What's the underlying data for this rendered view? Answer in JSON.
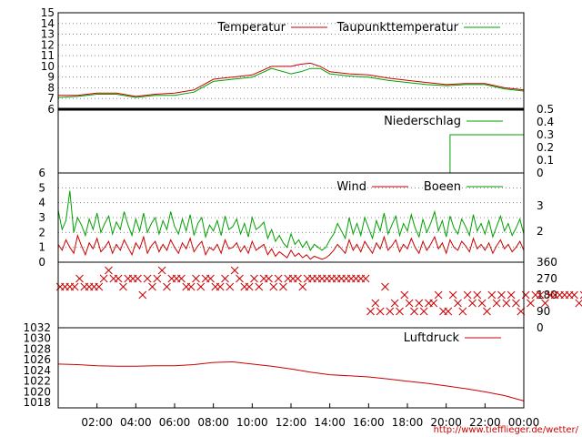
{
  "source_url": "http://www.tiefflieger.de/wetter/",
  "colors": {
    "red": "#cc0000",
    "green": "#00a000",
    "grid": "#888888",
    "frame": "#000000"
  },
  "x_axis": {
    "range_hours": [
      0,
      24
    ],
    "ticks": [
      "02:00",
      "04:00",
      "06:00",
      "08:00",
      "10:00",
      "12:00",
      "14:00",
      "16:00",
      "18:00",
      "20:00",
      "22:00",
      "00:00"
    ]
  },
  "chart_data": [
    {
      "type": "line",
      "panel": "temperature",
      "ylim": [
        6,
        15
      ],
      "yticks": [
        "6",
        "7",
        "8",
        "9",
        "10",
        "11",
        "12",
        "13",
        "14",
        "15"
      ],
      "grid": true,
      "legend_placement": "top-right",
      "x_hours": [
        0,
        1,
        2,
        3,
        4,
        5,
        6,
        7,
        8,
        9,
        10,
        11,
        12,
        12.5,
        13,
        13.5,
        14,
        15,
        16,
        17,
        18,
        19,
        20,
        21,
        22,
        23,
        24
      ],
      "series": [
        {
          "name": "Temperatur",
          "color": "#cc0000",
          "values": [
            7.3,
            7.3,
            7.5,
            7.5,
            7.2,
            7.4,
            7.5,
            7.8,
            8.8,
            9.0,
            9.2,
            10.0,
            10.0,
            10.2,
            10.3,
            10.0,
            9.5,
            9.3,
            9.2,
            8.9,
            8.7,
            8.5,
            8.3,
            8.4,
            8.4,
            8.0,
            7.8
          ]
        },
        {
          "name": "Taupunkttemperatur",
          "color": "#00a000",
          "values": [
            7.1,
            7.2,
            7.4,
            7.4,
            7.1,
            7.3,
            7.3,
            7.6,
            8.6,
            8.8,
            9.0,
            9.8,
            9.3,
            9.5,
            9.8,
            9.8,
            9.3,
            9.1,
            9.0,
            8.7,
            8.5,
            8.3,
            8.2,
            8.3,
            8.3,
            7.9,
            7.7
          ]
        }
      ]
    },
    {
      "type": "line",
      "panel": "precipitation",
      "ylim": [
        0,
        0.5
      ],
      "yticks": [
        "0",
        "0.1",
        "0.2",
        "0.3",
        "0.4",
        "0.5"
      ],
      "grid": false,
      "series": [
        {
          "name": "Niederschlag",
          "color": "#00a000",
          "x_hours": [
            0,
            20.2,
            20.2,
            24
          ],
          "values": [
            0,
            0,
            0.3,
            0.3
          ]
        }
      ]
    },
    {
      "type": "line",
      "panel": "wind",
      "ylim": [
        0,
        6
      ],
      "yticks": [
        "0",
        "1",
        "2",
        "3",
        "4",
        "5",
        "6"
      ],
      "right_ticks": [
        "2",
        "3"
      ],
      "grid": true,
      "x_step_hours": 0.2,
      "series": [
        {
          "name": "Wind",
          "color": "#cc0000",
          "values": [
            1.2,
            0.8,
            1.5,
            1.0,
            0.6,
            1.8,
            1.1,
            0.5,
            1.3,
            0.9,
            1.6,
            0.7,
            1.0,
            1.4,
            0.6,
            1.2,
            0.8,
            1.5,
            1.0,
            0.5,
            1.3,
            0.9,
            1.7,
            0.6,
            1.1,
            1.4,
            0.7,
            1.2,
            0.8,
            1.5,
            1.0,
            0.6,
            1.3,
            0.9,
            1.6,
            0.7,
            1.1,
            1.4,
            0.5,
            1.0,
            0.8,
            1.2,
            0.6,
            1.5,
            0.9,
            1.0,
            1.3,
            0.7,
            1.1,
            0.6,
            1.4,
            0.8,
            1.0,
            1.2,
            0.5,
            0.9,
            0.4,
            0.7,
            0.5,
            0.3,
            0.8,
            0.4,
            0.6,
            0.3,
            0.5,
            0.2,
            0.4,
            0.3,
            0.2,
            0.3,
            0.5,
            0.8,
            1.2,
            0.9,
            0.6,
            1.5,
            0.8,
            1.2,
            0.7,
            1.4,
            1.0,
            0.6,
            1.3,
            0.9,
            1.7,
            0.8,
            1.1,
            1.5,
            0.7,
            1.2,
            0.9,
            1.6,
            1.0,
            0.6,
            1.4,
            0.8,
            1.2,
            1.7,
            0.9,
            1.3,
            0.6,
            1.5,
            1.0,
            0.8,
            1.4,
            1.1,
            0.7,
            1.6,
            0.9,
            1.2,
            0.8,
            1.3,
            0.6,
            1.1,
            1.5,
            0.9,
            1.2,
            0.7,
            1.0,
            1.4,
            0.8
          ]
        },
        {
          "name": "Boeen",
          "color": "#00a000",
          "values": [
            3.5,
            2.2,
            2.8,
            4.8,
            2.0,
            3.0,
            2.5,
            1.8,
            2.9,
            2.2,
            3.3,
            2.0,
            2.6,
            3.1,
            1.9,
            2.7,
            2.2,
            3.4,
            2.5,
            1.8,
            2.9,
            2.1,
            3.3,
            2.0,
            2.6,
            3.0,
            1.9,
            2.8,
            2.2,
            3.4,
            2.4,
            1.9,
            2.9,
            2.1,
            3.2,
            1.8,
            2.6,
            3.0,
            1.7,
            2.5,
            2.1,
            2.8,
            1.8,
            3.1,
            2.2,
            2.4,
            2.9,
            1.9,
            2.6,
            1.7,
            3.0,
            2.2,
            2.4,
            2.7,
            1.6,
            2.2,
            1.4,
            1.8,
            1.3,
            1.0,
            1.9,
            1.2,
            1.5,
            1.0,
            1.4,
            0.8,
            1.2,
            1.0,
            0.8,
            1.0,
            1.5,
            1.9,
            2.6,
            2.1,
            1.6,
            3.0,
            1.9,
            2.6,
            1.8,
            3.0,
            2.3,
            1.6,
            2.8,
            2.1,
            3.3,
            1.9,
            2.5,
            3.1,
            1.8,
            2.6,
            2.1,
            3.2,
            2.3,
            1.7,
            2.9,
            2.0,
            2.6,
            3.4,
            2.1,
            2.8,
            1.7,
            3.1,
            2.3,
            1.9,
            2.9,
            2.4,
            1.8,
            3.2,
            2.1,
            2.6,
            1.9,
            2.8,
            1.7,
            2.4,
            3.1,
            2.1,
            2.6,
            1.8,
            2.3,
            2.9,
            1.9
          ]
        }
      ]
    },
    {
      "type": "scatter",
      "panel": "wind-direction",
      "ylim": [
        0,
        360
      ],
      "yticks": [
        "0",
        "90",
        "180",
        "270",
        "360"
      ],
      "grid": false,
      "marker": "x",
      "color": "#cc0000",
      "x_step_hours": 0.25,
      "values": [
        225,
        225,
        225,
        225,
        270,
        225,
        225,
        225,
        225,
        270,
        315,
        270,
        270,
        225,
        270,
        270,
        270,
        180,
        270,
        225,
        270,
        315,
        225,
        270,
        270,
        270,
        225,
        225,
        270,
        225,
        270,
        270,
        225,
        225,
        270,
        225,
        315,
        270,
        225,
        225,
        270,
        225,
        270,
        270,
        225,
        270,
        225,
        270,
        270,
        270,
        225,
        270,
        270,
        270,
        270,
        270,
        270,
        270,
        270,
        270,
        270,
        270,
        270,
        270,
        90,
        135,
        90,
        225,
        90,
        135,
        90,
        180,
        135,
        90,
        135,
        90,
        135,
        135,
        180,
        90,
        90,
        180,
        135,
        90,
        180,
        135,
        180,
        135,
        90,
        180,
        135,
        180,
        135,
        180,
        135,
        90,
        180,
        135,
        180,
        180,
        135,
        180,
        180,
        180,
        180,
        180,
        180,
        135,
        180,
        135,
        180,
        135,
        90,
        135,
        180,
        135
      ]
    },
    {
      "type": "line",
      "panel": "pressure",
      "ylim": [
        1017,
        1032
      ],
      "yticks": [
        "1018",
        "1020",
        "1022",
        "1024",
        "1026",
        "1028",
        "1030",
        "1032"
      ],
      "grid": false,
      "legend_placement": "top-right",
      "x_hours": [
        0,
        1,
        2,
        3,
        4,
        5,
        6,
        7,
        8,
        9,
        10,
        11,
        12,
        13,
        14,
        15,
        16,
        17,
        18,
        19,
        20,
        21,
        22,
        23,
        24
      ],
      "series": [
        {
          "name": "Luftdruck",
          "color": "#cc0000",
          "values": [
            1025.2,
            1025.1,
            1024.9,
            1024.8,
            1024.8,
            1024.9,
            1024.9,
            1025.1,
            1025.5,
            1025.6,
            1025.2,
            1024.8,
            1024.3,
            1023.7,
            1023.2,
            1023.0,
            1022.8,
            1022.4,
            1022.0,
            1021.6,
            1021.1,
            1020.6,
            1020.0,
            1019.3,
            1018.3
          ]
        }
      ]
    }
  ]
}
